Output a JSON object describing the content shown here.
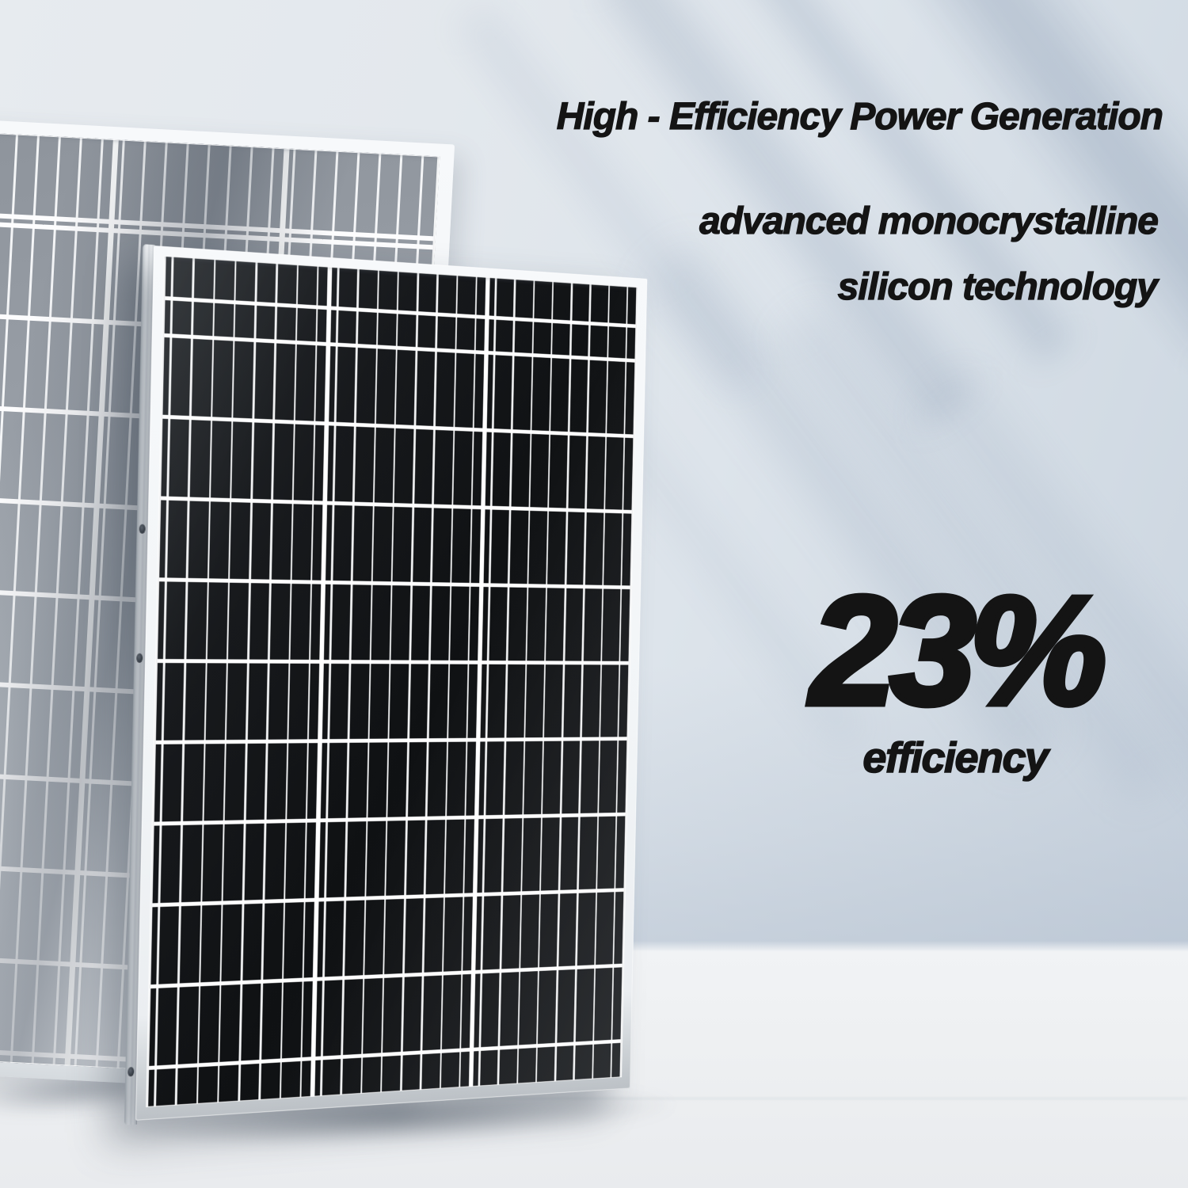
{
  "headline": {
    "line1": "High - Efficiency Power Generation",
    "line2": "advanced monocrystalline",
    "line3": "silicon technology",
    "text_color": "#141414"
  },
  "stat": {
    "value": "23%",
    "label": "efficiency",
    "text_color": "#141414"
  },
  "panels": {
    "front": {
      "name": "monocrystalline solar panel (dark, foreground)",
      "cell_color": "#101214",
      "frame_color": "#f3f5f7",
      "bottom_frame_color": "#c2c7cc",
      "grid_line_color": "#ffffff",
      "cell_column_groups": 3,
      "strips_per_group": 8,
      "cell_rows": 10,
      "mounting_holes": 3
    },
    "back": {
      "name": "solar panel light/rear variant (background)",
      "cell_color": "#a8aeb6",
      "frame_color": "#f2f4f6",
      "grid_line_color": "#ffffff",
      "cell_column_groups": 3,
      "strips_per_group": 8
    }
  },
  "background": {
    "wall_top_color": "#e6eaee",
    "wall_bottom_color": "#c8d2de",
    "floor_color": "#eef0f2",
    "shadow_streak_color": "#8698b0",
    "description": "soft diagonal leaf shadows on wall, wall-floor seam near bottom"
  }
}
